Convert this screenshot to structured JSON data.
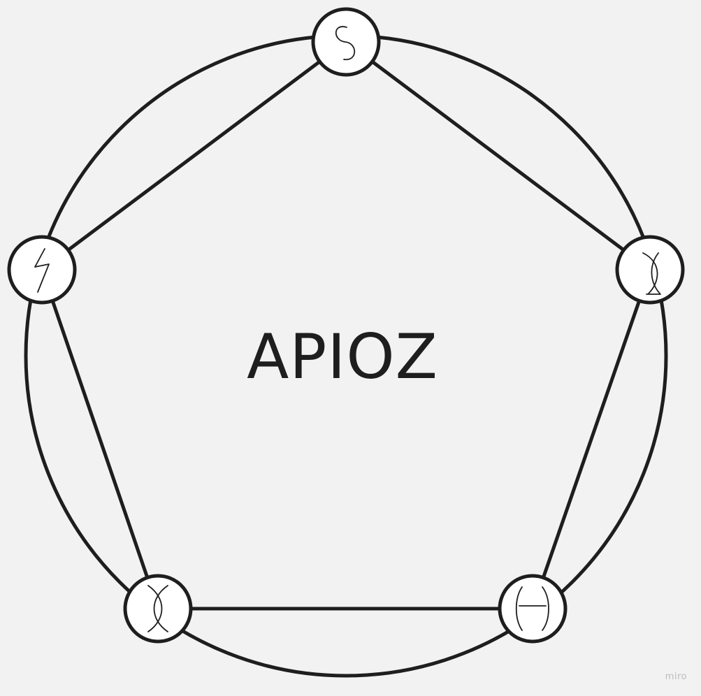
{
  "diagram": {
    "center_label": "APIOZ",
    "nodes": [
      {
        "id": "top",
        "icon": "swirl-s-rune-icon"
      },
      {
        "id": "right",
        "icon": "crossed-arcs-rune-icon"
      },
      {
        "id": "bottom-right",
        "icon": "arcs-with-bar-rune-icon"
      },
      {
        "id": "bottom-left",
        "icon": "crossed-curves-rune-icon"
      },
      {
        "id": "left",
        "icon": "lightning-rune-icon"
      }
    ],
    "colors": {
      "background": "#f2f2f2",
      "stroke": "#1e1e1e",
      "node_fill": "#ffffff"
    }
  },
  "watermark": "miro"
}
